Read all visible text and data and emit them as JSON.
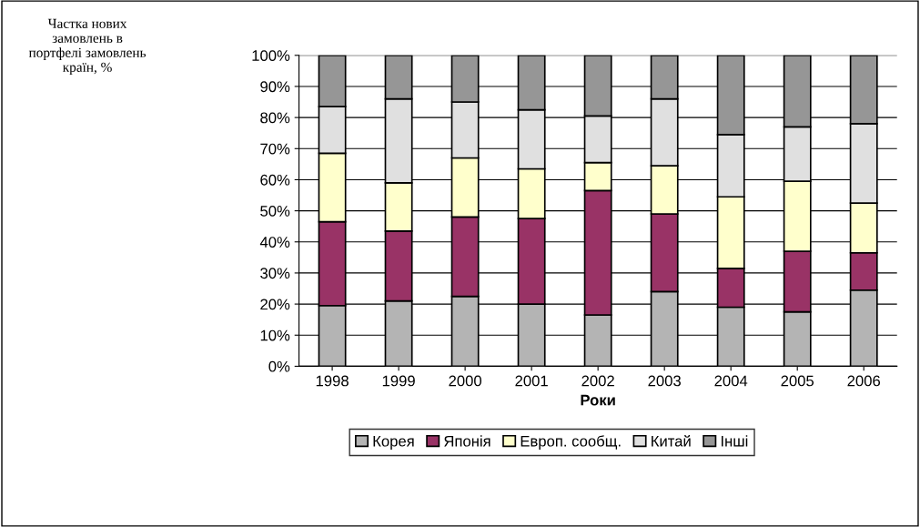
{
  "chart_data": {
    "type": "bar",
    "stacked": true,
    "annotations": [
      "Частка нових замовлень в портфелі замовлень країн, %"
    ],
    "xlabel": "Роки",
    "categories": [
      "1998",
      "1999",
      "2000",
      "2001",
      "2002",
      "2003",
      "2004",
      "2005",
      "2006"
    ],
    "series": [
      {
        "name": "Корея",
        "color": "#b4b4b4",
        "values": [
          19.5,
          21,
          22.5,
          20,
          16.5,
          24,
          19,
          17.5,
          24.5
        ]
      },
      {
        "name": "Японія",
        "color": "#993366",
        "values": [
          27,
          22.5,
          25.5,
          27.5,
          40,
          25,
          12.5,
          19.5,
          12
        ]
      },
      {
        "name": "Европ. сообщ.",
        "color": "#ffffcc",
        "values": [
          22,
          15.5,
          19,
          16,
          9,
          15.5,
          23,
          22.5,
          16
        ]
      },
      {
        "name": "Китай",
        "color": "#e0e0e0",
        "values": [
          15,
          27,
          18,
          19,
          15,
          21.5,
          20,
          17.5,
          25.5
        ]
      },
      {
        "name": "Інші",
        "color": "#969696",
        "values": [
          16.5,
          14,
          15,
          17.5,
          19.5,
          14,
          25.5,
          23,
          22
        ]
      }
    ],
    "ylim": [
      0,
      100
    ],
    "yticks": [
      {
        "value": 0,
        "label": "0%"
      },
      {
        "value": 10,
        "label": "10%"
      },
      {
        "value": 20,
        "label": "20%"
      },
      {
        "value": 30,
        "label": "30%"
      },
      {
        "value": 40,
        "label": "40%"
      },
      {
        "value": 50,
        "label": "50%"
      },
      {
        "value": 60,
        "label": "60%"
      },
      {
        "value": 70,
        "label": "70%"
      },
      {
        "value": 80,
        "label": "80%"
      },
      {
        "value": 90,
        "label": "90%"
      },
      {
        "value": 100,
        "label": "100%"
      }
    ],
    "grid": "y",
    "legend": "bottom"
  }
}
